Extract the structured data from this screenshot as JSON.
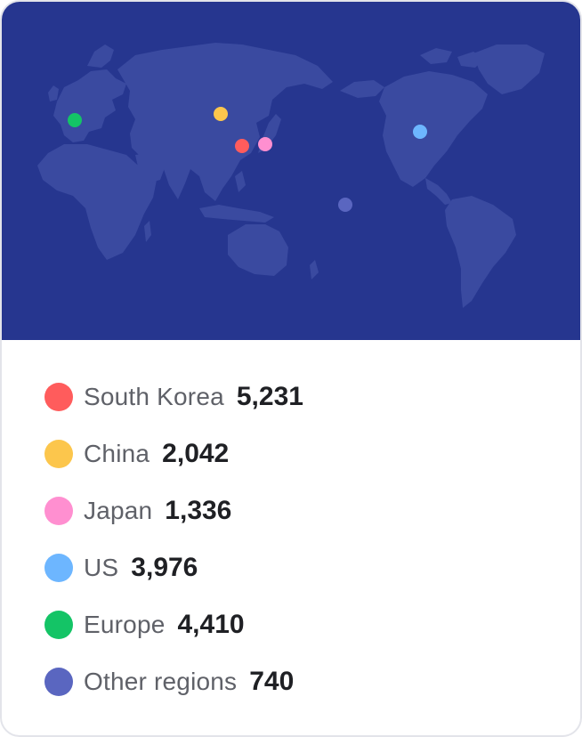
{
  "regions": [
    {
      "label": "South Korea",
      "value": "5,231",
      "color": "#ff5c5c",
      "icon": "red-dot-icon"
    },
    {
      "label": "China",
      "value": "2,042",
      "color": "#fcc64c",
      "icon": "yellow-dot-icon"
    },
    {
      "label": "Japan",
      "value": "1,336",
      "color": "#ff8fd0",
      "icon": "pink-dot-icon"
    },
    {
      "label": "US",
      "value": "3,976",
      "color": "#6db6ff",
      "icon": "blue-dot-icon"
    },
    {
      "label": "Europe",
      "value": "4,410",
      "color": "#14c466",
      "icon": "green-dot-icon"
    },
    {
      "label": "Other regions",
      "value": "740",
      "color": "#5a66c0",
      "icon": "purple-dot-icon"
    }
  ],
  "colors": {
    "map_background": "#26368f",
    "land": "#3a4aa0"
  }
}
